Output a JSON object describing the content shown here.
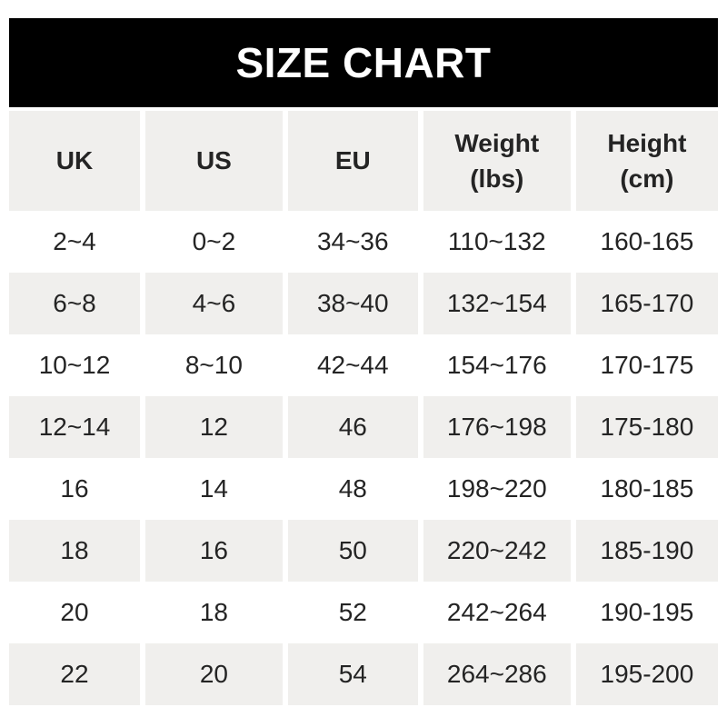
{
  "title": "SIZE CHART",
  "colors": {
    "title_bar_bg": "#000000",
    "title_text": "#ffffff",
    "shaded_row_bg": "#f0efed",
    "plain_row_bg": "#ffffff",
    "cell_text": "#242424"
  },
  "table": {
    "columns": [
      {
        "id": "uk",
        "label": "UK"
      },
      {
        "id": "us",
        "label": "US"
      },
      {
        "id": "eu",
        "label": "EU"
      },
      {
        "id": "weight",
        "label": "Weight\n(lbs)"
      },
      {
        "id": "height",
        "label": "Height\n(cm)"
      }
    ],
    "rows": [
      [
        "2~4",
        "0~2",
        "34~36",
        "110~132",
        "160-165"
      ],
      [
        "6~8",
        "4~6",
        "38~40",
        "132~154",
        "165-170"
      ],
      [
        "10~12",
        "8~10",
        "42~44",
        "154~176",
        "170-175"
      ],
      [
        "12~14",
        "12",
        "46",
        "176~198",
        "175-180"
      ],
      [
        "16",
        "14",
        "48",
        "198~220",
        "180-185"
      ],
      [
        "18",
        "16",
        "50",
        "220~242",
        "185-190"
      ],
      [
        "20",
        "18",
        "52",
        "242~264",
        "190-195"
      ],
      [
        "22",
        "20",
        "54",
        "264~286",
        "195-200"
      ]
    ]
  },
  "chart_data": {
    "type": "table",
    "title": "SIZE CHART",
    "columns": [
      "UK",
      "US",
      "EU",
      "Weight (lbs)",
      "Height (cm)"
    ],
    "rows": [
      [
        "2~4",
        "0~2",
        "34~36",
        "110~132",
        "160-165"
      ],
      [
        "6~8",
        "4~6",
        "38~40",
        "132~154",
        "165-170"
      ],
      [
        "10~12",
        "8~10",
        "42~44",
        "154~176",
        "170-175"
      ],
      [
        "12~14",
        "12",
        "46",
        "176~198",
        "175-180"
      ],
      [
        "16",
        "14",
        "48",
        "198~220",
        "180-185"
      ],
      [
        "18",
        "16",
        "50",
        "220~242",
        "185-190"
      ],
      [
        "20",
        "18",
        "52",
        "242~264",
        "190-195"
      ],
      [
        "22",
        "20",
        "54",
        "264~286",
        "195-200"
      ]
    ],
    "layout": {
      "header_bar": "black full-width band above table",
      "row_striping": "white / light-gray alternating, header row gray",
      "column_separators": "thin white vertical gaps"
    }
  }
}
